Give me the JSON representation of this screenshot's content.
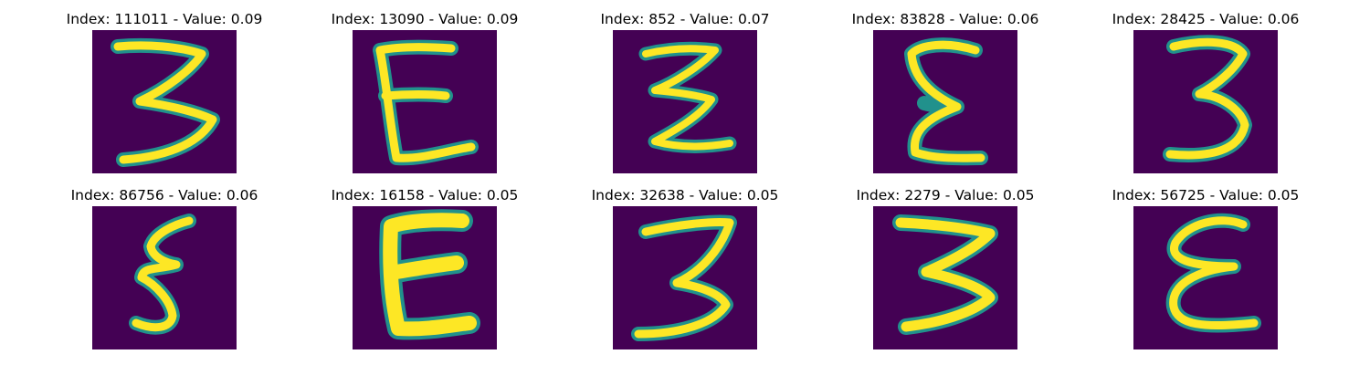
{
  "colors": {
    "background": "#440154",
    "mid": "#21918c",
    "high": "#fde725"
  },
  "panels": [
    {
      "title": "Index: 111011 - Value: 0.09",
      "glyph": "3",
      "glyph_name": "digit-3-image"
    },
    {
      "title": "Index: 13090 - Value: 0.09",
      "glyph": "E",
      "glyph_name": "letter-e-image"
    },
    {
      "title": "Index: 852 - Value: 0.07",
      "glyph": "Z",
      "glyph_name": "zigzag-digit-image"
    },
    {
      "title": "Index: 83828 - Value: 0.06",
      "glyph": "E",
      "glyph_name": "letter-e-image"
    },
    {
      "title": "Index: 28425 - Value: 0.06",
      "glyph": "3",
      "glyph_name": "digit-3-image"
    },
    {
      "title": "Index: 86756 - Value: 0.06",
      "glyph": "5",
      "glyph_name": "digit-5-image"
    },
    {
      "title": "Index: 16158 - Value: 0.05",
      "glyph": "E",
      "glyph_name": "letter-e-image"
    },
    {
      "title": "Index: 32638 - Value: 0.05",
      "glyph": "3",
      "glyph_name": "digit-3-image"
    },
    {
      "title": "Index: 2279 - Value: 0.05",
      "glyph": "3",
      "glyph_name": "digit-3-image"
    },
    {
      "title": "Index: 56725 - Value: 0.05",
      "glyph": "E",
      "glyph_name": "letter-e-image"
    }
  ]
}
